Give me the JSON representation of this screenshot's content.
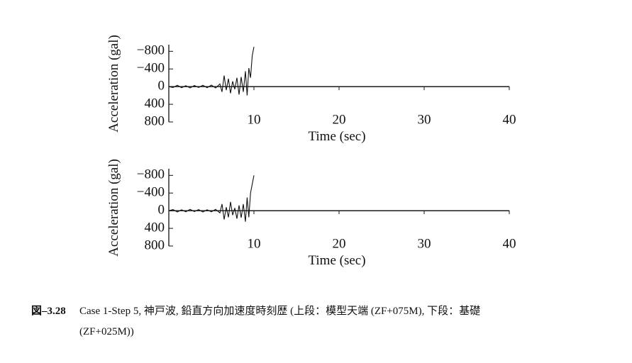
{
  "chart_data": [
    {
      "type": "line",
      "y_label": "Acceleration (gal)",
      "x_label": "Time (sec)",
      "xlim": [
        0,
        40
      ],
      "xticks": [
        10,
        20,
        30,
        40
      ],
      "ylim": [
        800,
        -950
      ],
      "yticks": [
        {
          "value": -800,
          "label": "−800"
        },
        {
          "value": -400,
          "label": "−400"
        },
        0,
        400,
        800
      ],
      "x": [
        0,
        0.5,
        1,
        1.5,
        2,
        2.5,
        3,
        3.5,
        4,
        4.5,
        5,
        5.5,
        6,
        6.25,
        6.5,
        6.75,
        7,
        7.25,
        7.5,
        7.75,
        8,
        8.25,
        8.5,
        8.75,
        9,
        9.2,
        9.4,
        9.6,
        9.8,
        10,
        10.05,
        9.5,
        40
      ],
      "series": [
        {
          "color": "#111",
          "values": [
            0,
            20,
            -30,
            25,
            -20,
            30,
            -25,
            20,
            -30,
            25,
            -35,
            30,
            -60,
            120,
            -250,
            80,
            -180,
            150,
            -120,
            60,
            -200,
            180,
            -220,
            120,
            -350,
            200,
            -420,
            -200,
            -700,
            -900,
            null,
            0,
            0
          ]
        }
      ]
    },
    {
      "type": "line",
      "y_label": "Acceleration (gal)",
      "x_label": "Time (sec)",
      "xlim": [
        0,
        40
      ],
      "xticks": [
        10,
        20,
        30,
        40
      ],
      "ylim": [
        800,
        -950
      ],
      "yticks": [
        {
          "value": -800,
          "label": "−800"
        },
        {
          "value": -400,
          "label": "−400"
        },
        0,
        400,
        800
      ],
      "x": [
        0,
        0.5,
        1,
        1.5,
        2,
        2.5,
        3,
        3.5,
        4,
        4.5,
        5,
        5.5,
        6,
        6.25,
        6.5,
        6.75,
        7,
        7.25,
        7.5,
        7.75,
        8,
        8.25,
        8.5,
        8.75,
        9,
        9.2,
        9.4,
        9.6,
        9.8,
        10,
        10.05,
        9.5,
        40
      ],
      "series": [
        {
          "color": "#111",
          "values": [
            0,
            -25,
            30,
            -20,
            25,
            -30,
            20,
            -25,
            30,
            -20,
            25,
            -30,
            50,
            -150,
            200,
            -80,
            150,
            -200,
            100,
            -60,
            180,
            -120,
            160,
            -150,
            250,
            -300,
            150,
            -400,
            -600,
            -800,
            null,
            0,
            0
          ]
        }
      ]
    }
  ],
  "caption": {
    "label": "図–3.28",
    "line1": "Case 1-Step 5, 神戸波, 鉛直方向加速度時刻歴 (上段：模型天端 (ZF+075M),  下段：基礎",
    "line2": "(ZF+025M))"
  }
}
